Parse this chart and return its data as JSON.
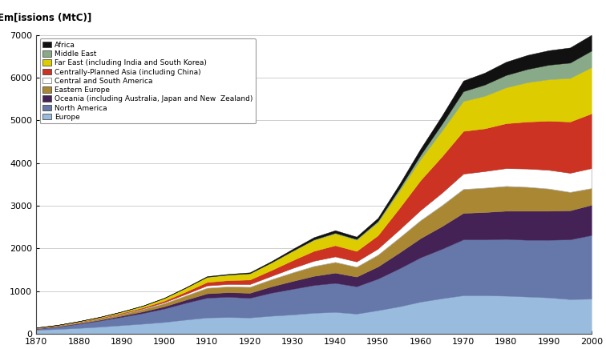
{
  "title": "Em[issions (MtC)]",
  "xlim": [
    1870,
    2000
  ],
  "ylim": [
    0,
    7000
  ],
  "yticks": [
    0,
    1000,
    2000,
    3000,
    4000,
    5000,
    6000,
    7000
  ],
  "xticks": [
    1870,
    1880,
    1890,
    1900,
    1910,
    1920,
    1930,
    1940,
    1950,
    1960,
    1970,
    1980,
    1990,
    2000
  ],
  "regions": [
    "Europe",
    "North America",
    "Oceania (including Australia, Japan and New  Zealand)",
    "Eastern Europe",
    "Central and South America",
    "Centrally-Planned Asia (including China)",
    "Far East (including India and South Korea)",
    "Middle East",
    "Africa"
  ],
  "colors": [
    "#99BBDD",
    "#6677AA",
    "#442255",
    "#AA8833",
    "#FFFFFF",
    "#CC3322",
    "#DDCC00",
    "#88AA88",
    "#111111"
  ],
  "years": [
    1870,
    1875,
    1880,
    1885,
    1890,
    1895,
    1900,
    1905,
    1910,
    1915,
    1920,
    1925,
    1930,
    1935,
    1940,
    1945,
    1950,
    1955,
    1960,
    1965,
    1970,
    1975,
    1980,
    1985,
    1990,
    1995,
    2000
  ],
  "data": {
    "Europe": [
      90,
      110,
      135,
      165,
      200,
      235,
      275,
      330,
      380,
      390,
      380,
      420,
      450,
      490,
      510,
      470,
      550,
      640,
      750,
      830,
      900,
      900,
      890,
      870,
      850,
      810,
      820
    ],
    "North America": [
      25,
      55,
      100,
      145,
      195,
      250,
      315,
      395,
      465,
      475,
      460,
      540,
      600,
      650,
      680,
      640,
      740,
      890,
      1040,
      1160,
      1310,
      1310,
      1330,
      1330,
      1350,
      1400,
      1490
    ],
    "Oceania (including Australia, Japan and New  Zealand)": [
      5,
      8,
      12,
      18,
      27,
      38,
      52,
      72,
      100,
      108,
      118,
      148,
      185,
      215,
      240,
      228,
      285,
      370,
      450,
      530,
      620,
      640,
      660,
      680,
      680,
      680,
      710
    ],
    "Eastern Europe": [
      10,
      14,
      20,
      29,
      40,
      55,
      72,
      98,
      130,
      135,
      140,
      165,
      200,
      230,
      250,
      230,
      275,
      350,
      420,
      490,
      560,
      570,
      580,
      560,
      520,
      430,
      390
    ],
    "Central and South America": [
      2,
      3,
      5,
      7,
      11,
      16,
      25,
      38,
      56,
      58,
      65,
      80,
      105,
      125,
      132,
      125,
      145,
      190,
      240,
      295,
      360,
      390,
      420,
      430,
      440,
      450,
      470
    ],
    "Centrally-Planned Asia (including China)": [
      5,
      6,
      8,
      11,
      16,
      22,
      35,
      52,
      80,
      88,
      105,
      135,
      180,
      230,
      260,
      245,
      310,
      500,
      700,
      850,
      1000,
      1000,
      1050,
      1100,
      1150,
      1200,
      1280
    ],
    "Far East (including India and South Korea)": [
      8,
      10,
      14,
      20,
      28,
      40,
      62,
      90,
      120,
      128,
      145,
      175,
      215,
      255,
      275,
      262,
      308,
      400,
      490,
      600,
      700,
      760,
      840,
      920,
      970,
      1020,
      1080
    ],
    "Middle East": [
      0,
      0,
      0,
      0,
      0,
      0,
      1,
      2,
      3,
      3,
      4,
      6,
      9,
      14,
      18,
      18,
      28,
      55,
      100,
      160,
      230,
      265,
      290,
      310,
      340,
      360,
      390
    ],
    "Africa": [
      1,
      1,
      2,
      3,
      4,
      5,
      7,
      10,
      14,
      16,
      20,
      28,
      40,
      52,
      60,
      56,
      72,
      105,
      148,
      195,
      250,
      280,
      310,
      330,
      340,
      355,
      370
    ]
  }
}
